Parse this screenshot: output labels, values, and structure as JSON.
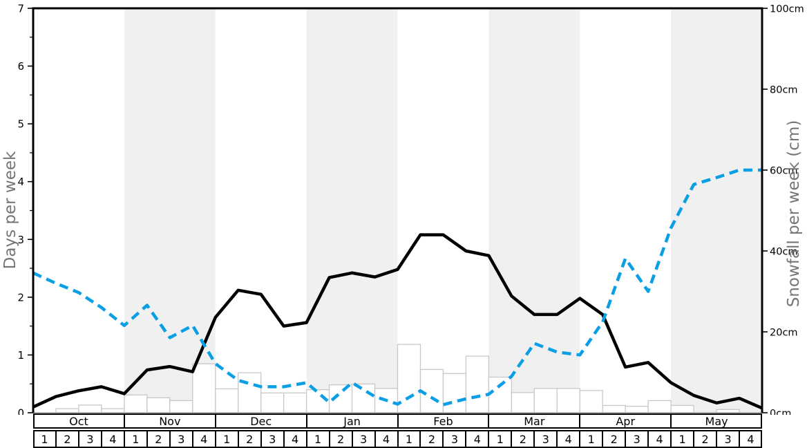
{
  "chart_data": {
    "type": "line+bar",
    "title": "",
    "x": {
      "months": [
        "Oct",
        "Nov",
        "Dec",
        "Jan",
        "Feb",
        "Mar",
        "Apr",
        "May"
      ],
      "weeks_per_month": [
        "1",
        "2",
        "3",
        "4"
      ],
      "shaded_months": [
        "Nov",
        "Jan",
        "Mar",
        "May"
      ]
    },
    "left_axis": {
      "label": "Days per week",
      "min": 0,
      "max": 7,
      "major_ticks": [
        0,
        1,
        2,
        3,
        4,
        5,
        6,
        7
      ],
      "minor_tick_step": 0.5
    },
    "right_axis": {
      "label": "Snowfall per week (cm)",
      "min": 0,
      "max": 100,
      "tick_values": [
        0,
        20,
        40,
        60,
        80,
        100
      ],
      "tick_labels": [
        "0cm",
        "20cm",
        "40cm",
        "60cm",
        "80cm",
        "100cm"
      ]
    },
    "series": [
      {
        "name": "solid-black-days-line",
        "style": "solid",
        "color": "#000000",
        "axis": "left",
        "points_note": "33 points evenly spaced from Oct week1 left edge to May week4 right edge",
        "values": [
          0.1,
          0.28,
          0.38,
          0.45,
          0.33,
          0.74,
          0.8,
          0.71,
          1.65,
          2.12,
          2.05,
          1.5,
          1.56,
          2.34,
          2.42,
          2.35,
          2.48,
          3.08,
          3.08,
          2.8,
          2.72,
          2.02,
          1.7,
          1.7,
          1.98,
          1.7,
          0.79,
          0.87,
          0.52,
          0.3,
          0.17,
          0.25,
          0.08
        ]
      },
      {
        "name": "dashed-blue-days-line",
        "style": "dashed",
        "color": "#0a9fe5",
        "axis": "left",
        "values": [
          2.42,
          2.24,
          2.08,
          1.82,
          1.51,
          1.86,
          1.3,
          1.51,
          0.85,
          0.56,
          0.45,
          0.45,
          0.52,
          0.18,
          0.52,
          0.28,
          0.15,
          0.38,
          0.14,
          0.24,
          0.32,
          0.63,
          1.2,
          1.05,
          1.0,
          1.57,
          2.67,
          2.1,
          3.2,
          3.95,
          4.07,
          4.2,
          4.2
        ]
      }
    ],
    "bars": {
      "name": "snowfall-per-week-bars",
      "axis": "right",
      "unit": "cm",
      "fill": "#ffffff",
      "stroke": "#c8c8c8",
      "values_cm": [
        0,
        1.0,
        1.9,
        1.0,
        4.4,
        3.7,
        3.0,
        12.1,
        5.9,
        9.9,
        4.9,
        4.9,
        5.7,
        6.9,
        7.1,
        6.0,
        16.9,
        10.7,
        9.7,
        14.0,
        8.8,
        5.0,
        6.0,
        6.0,
        5.5,
        1.8,
        1.6,
        3.0,
        1.8,
        0,
        0.8,
        0
      ]
    },
    "colors": {
      "band": "#f0f0f0",
      "axis_line": "#000000",
      "axis_title": "#757575",
      "tick_label": "#000000",
      "baseline": "#999999"
    }
  }
}
